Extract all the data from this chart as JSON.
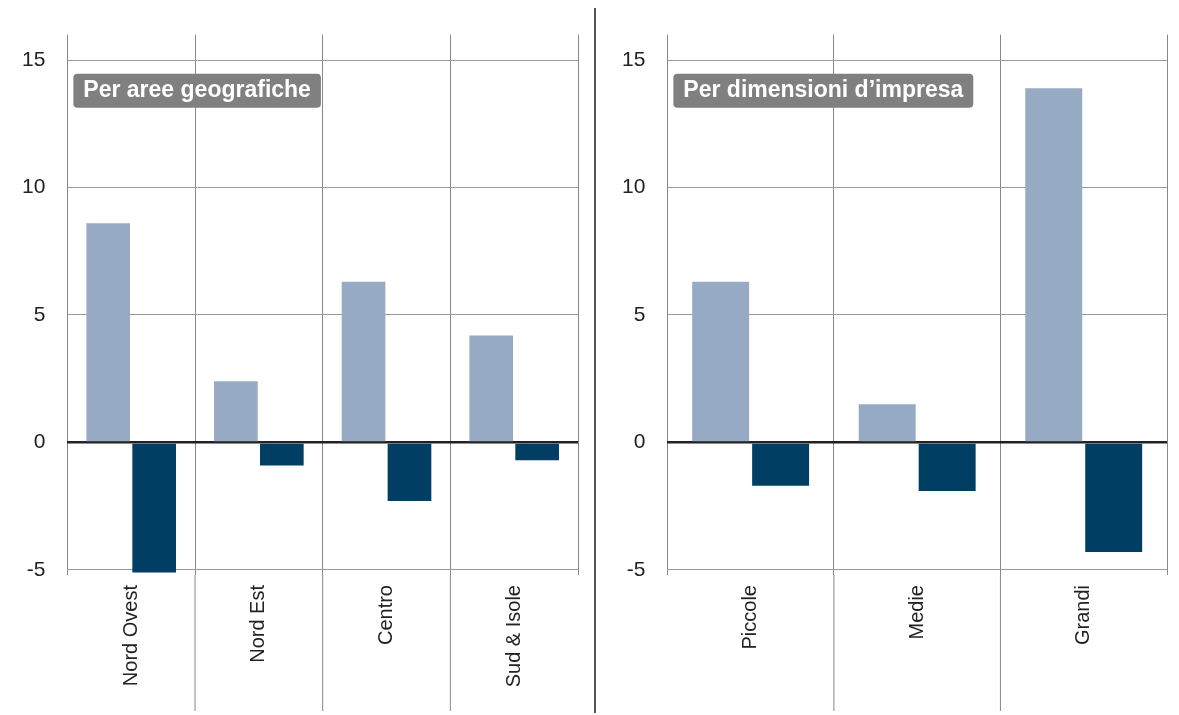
{
  "chart_data": [
    {
      "type": "bar",
      "title": "Per aree geografiche",
      "categories": [
        "Nord Ovest",
        "Nord Est",
        "Centro",
        "Sud & Isole"
      ],
      "series": [
        {
          "color": "#97aac4",
          "values": [
            8.6,
            2.4,
            6.3,
            4.2
          ]
        },
        {
          "color": "#003f63",
          "values": [
            -5.1,
            -0.9,
            -2.3,
            -0.7
          ]
        }
      ],
      "ylim": [
        -5.2,
        16
      ],
      "yticks": [
        -5,
        0,
        5,
        10,
        15
      ],
      "grid": true
    },
    {
      "type": "bar",
      "title": "Per dimensioni d’impresa",
      "categories": [
        "Piccole",
        "Medie",
        "Grandi"
      ],
      "series": [
        {
          "color": "#97aac4",
          "values": [
            6.3,
            1.5,
            13.9
          ]
        },
        {
          "color": "#003f63",
          "values": [
            -1.7,
            -1.9,
            -4.3
          ]
        }
      ],
      "ylim": [
        -5.2,
        16
      ],
      "yticks": [
        -5,
        0,
        5,
        10,
        15
      ],
      "grid": true
    }
  ]
}
